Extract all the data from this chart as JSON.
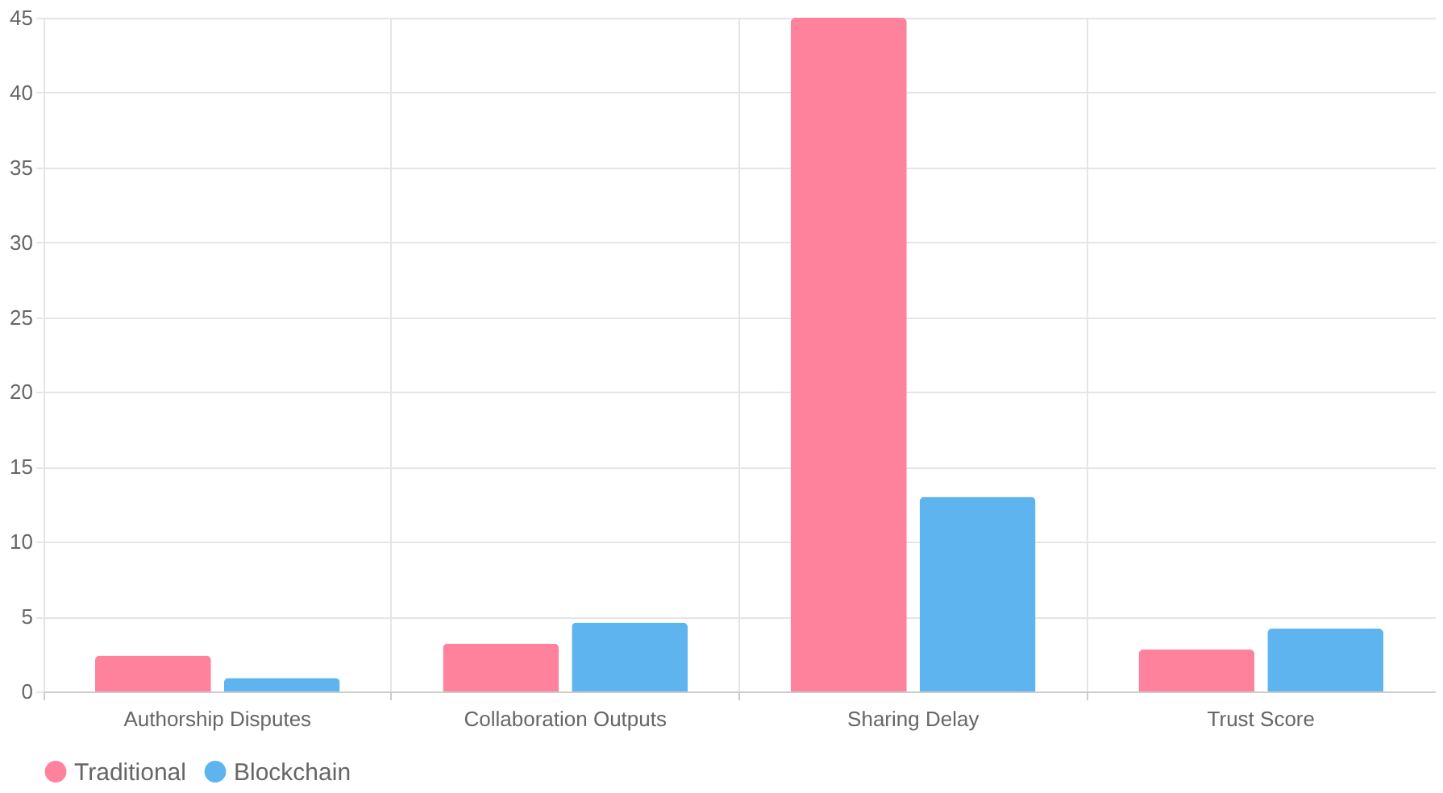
{
  "chart_data": {
    "type": "bar",
    "categories": [
      "Authorship Disputes",
      "Collaboration Outputs",
      "Sharing Delay",
      "Trust Score"
    ],
    "series": [
      {
        "name": "Traditional",
        "color": "#ff829d",
        "values": [
          2.4,
          3.2,
          45,
          2.8
        ]
      },
      {
        "name": "Blockchain",
        "color": "#5eb4ee",
        "values": [
          0.9,
          4.6,
          13,
          4.2
        ]
      }
    ],
    "ylim": [
      0,
      45
    ],
    "yticks": [
      0,
      5,
      10,
      15,
      20,
      25,
      30,
      35,
      40,
      45
    ],
    "grid": true,
    "legend": "bottom"
  }
}
